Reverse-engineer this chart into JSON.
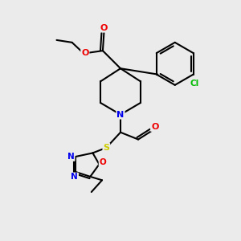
{
  "bg_color": "#ebebeb",
  "bond_color": "#000000",
  "atom_colors": {
    "N": "#0000ee",
    "O": "#ee0000",
    "S": "#cccc00",
    "Cl": "#00bb00",
    "C": "#000000"
  },
  "figsize": [
    3.0,
    3.0
  ],
  "dpi": 100
}
